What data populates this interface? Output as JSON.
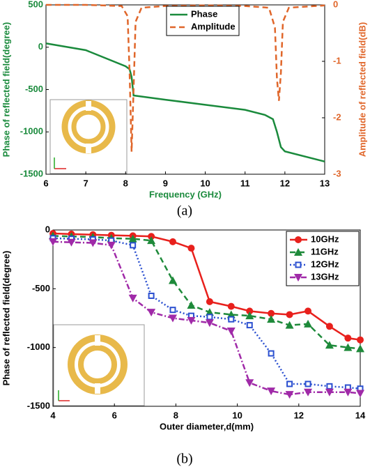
{
  "chart_data": [
    {
      "type": "line",
      "caption": "(a)",
      "xlabel": "Frequency (GHz)",
      "ylabel": "Phase of reflected field(degree)",
      "y2label": "Amplitude of reflected field(dB)",
      "xlim": [
        6,
        13
      ],
      "xticks": [
        6,
        7,
        8,
        9,
        10,
        11,
        12,
        13
      ],
      "ylim": [
        -1500,
        500
      ],
      "yticks": [
        -1500,
        -1000,
        -500,
        0,
        500
      ],
      "y2lim": [
        -3,
        0
      ],
      "y2ticks": [
        -3,
        -2,
        -1,
        0
      ],
      "axis_colors": true,
      "legend": "top",
      "series": [
        {
          "name": "Phase",
          "color": "#1a8a3c",
          "linestyle": "solid",
          "x": [
            6,
            7,
            8,
            8.1,
            8.15,
            8.2,
            9,
            10,
            11,
            11.5,
            11.7,
            11.8,
            11.9,
            12,
            13
          ],
          "values": [
            45,
            -35,
            -225,
            -260,
            -350,
            -570,
            -620,
            -680,
            -740,
            -800,
            -850,
            -1000,
            -1180,
            -1230,
            -1350
          ]
        },
        {
          "name": "Amplitude",
          "color": "#e0662a",
          "linestyle": "dashed",
          "axis": "y2",
          "x": [
            6,
            7,
            7.9,
            8.05,
            8.1,
            8.15,
            8.2,
            8.25,
            8.4,
            9,
            10,
            11,
            11.6,
            11.75,
            11.8,
            11.85,
            11.9,
            11.95,
            12.1,
            13
          ],
          "values": [
            0,
            0,
            -0.02,
            -0.2,
            -1.2,
            -2.6,
            -1.5,
            -0.3,
            -0.05,
            -0.02,
            -0.01,
            -0.02,
            -0.05,
            -0.4,
            -1.3,
            -1.7,
            -1.2,
            -0.3,
            -0.05,
            -0.01
          ]
        }
      ]
    },
    {
      "type": "line",
      "caption": "(b)",
      "xlabel": "Outer diameter,d(mm)",
      "ylabel": "Phase of reflected field(degree)",
      "xlim": [
        4,
        14
      ],
      "xticks": [
        4,
        6,
        8,
        10,
        12,
        14
      ],
      "ylim": [
        -1500,
        0
      ],
      "yticks": [
        -1500,
        -1000,
        -500,
        0
      ],
      "axis_colors": false,
      "legend": "top right",
      "series": [
        {
          "name": "10GHz",
          "color": "#e8201c",
          "linestyle": "solid",
          "marker": "circle",
          "x": [
            4,
            4.6,
            5.3,
            5.9,
            6.6,
            7.2,
            7.9,
            8.5,
            9.1,
            9.8,
            10.4,
            11.1,
            11.7,
            12.3,
            13,
            13.6,
            14
          ],
          "values": [
            -30,
            -35,
            -40,
            -45,
            -50,
            -55,
            -100,
            -155,
            -610,
            -650,
            -690,
            -710,
            -720,
            -690,
            -820,
            -920,
            -935
          ]
        },
        {
          "name": "11GHz",
          "color": "#1e8a3a",
          "linestyle": "dashed",
          "marker": "triangle",
          "x": [
            4,
            4.6,
            5.3,
            5.9,
            6.6,
            7.2,
            7.9,
            8.5,
            9.1,
            9.8,
            10.4,
            11.1,
            11.7,
            12.3,
            13,
            13.6,
            14
          ],
          "values": [
            -50,
            -55,
            -60,
            -70,
            -75,
            -90,
            -430,
            -640,
            -700,
            -720,
            -730,
            -760,
            -810,
            -800,
            -980,
            -1000,
            -1010
          ]
        },
        {
          "name": "12GHz",
          "color": "#2a4fd0",
          "linestyle": "dotted",
          "marker": "square",
          "x": [
            4,
            4.6,
            5.3,
            5.9,
            6.6,
            7.2,
            7.9,
            8.5,
            9.1,
            9.8,
            10.4,
            11.1,
            11.7,
            12.3,
            13,
            13.6,
            14
          ],
          "values": [
            -70,
            -75,
            -80,
            -90,
            -130,
            -560,
            -680,
            -730,
            -740,
            -760,
            -810,
            -1050,
            -1310,
            -1310,
            -1330,
            -1340,
            -1350
          ]
        },
        {
          "name": "13GHz",
          "color": "#a02aa8",
          "linestyle": "dashdot",
          "marker": "triangle-down",
          "x": [
            4,
            4.6,
            5.3,
            5.9,
            6.6,
            7.2,
            7.9,
            8.5,
            9.1,
            9.8,
            10.4,
            11.1,
            11.7,
            12.3,
            13,
            13.6,
            14
          ],
          "values": [
            -100,
            -105,
            -110,
            -130,
            -580,
            -700,
            -750,
            -770,
            -790,
            -860,
            -1300,
            -1370,
            -1400,
            -1380,
            -1380,
            -1380,
            -1390
          ]
        }
      ]
    }
  ]
}
